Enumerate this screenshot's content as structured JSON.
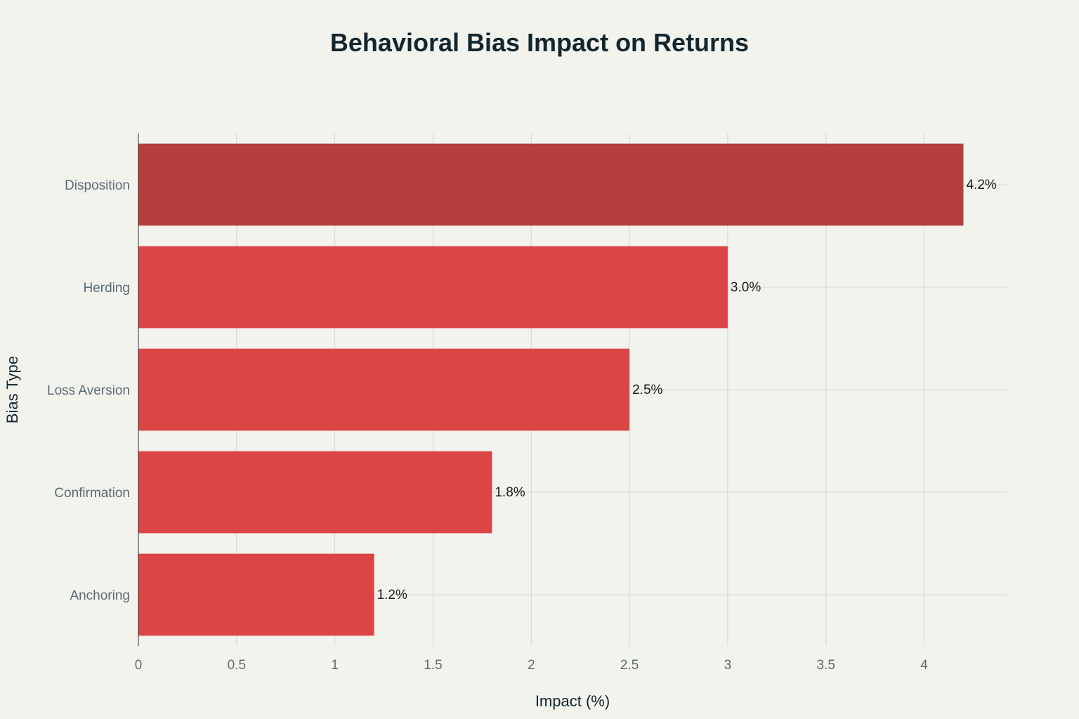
{
  "chart_data": {
    "type": "bar",
    "orientation": "horizontal",
    "title": "Behavioral Bias Impact on Returns",
    "xlabel": "Impact (%)",
    "ylabel": "Bias Type",
    "categories": [
      "Disposition",
      "Herding",
      "Loss Aversion",
      "Confirmation",
      "Anchoring"
    ],
    "values": [
      4.2,
      3.0,
      2.5,
      1.8,
      1.2
    ],
    "data_labels": [
      "4.2%",
      "3.0%",
      "2.5%",
      "1.8%",
      "1.2%"
    ],
    "bar_colors": [
      "#b43f3c",
      "#db4545",
      "#db4545",
      "#db4545",
      "#db4545"
    ],
    "xlim": [
      0,
      4.42
    ],
    "xticks": [
      0,
      0.5,
      1,
      1.5,
      2,
      2.5,
      3,
      3.5,
      4
    ],
    "xtick_labels": [
      "0",
      "0.5",
      "1",
      "1.5",
      "2",
      "2.5",
      "3",
      "3.5",
      "4"
    ],
    "grid": true
  }
}
